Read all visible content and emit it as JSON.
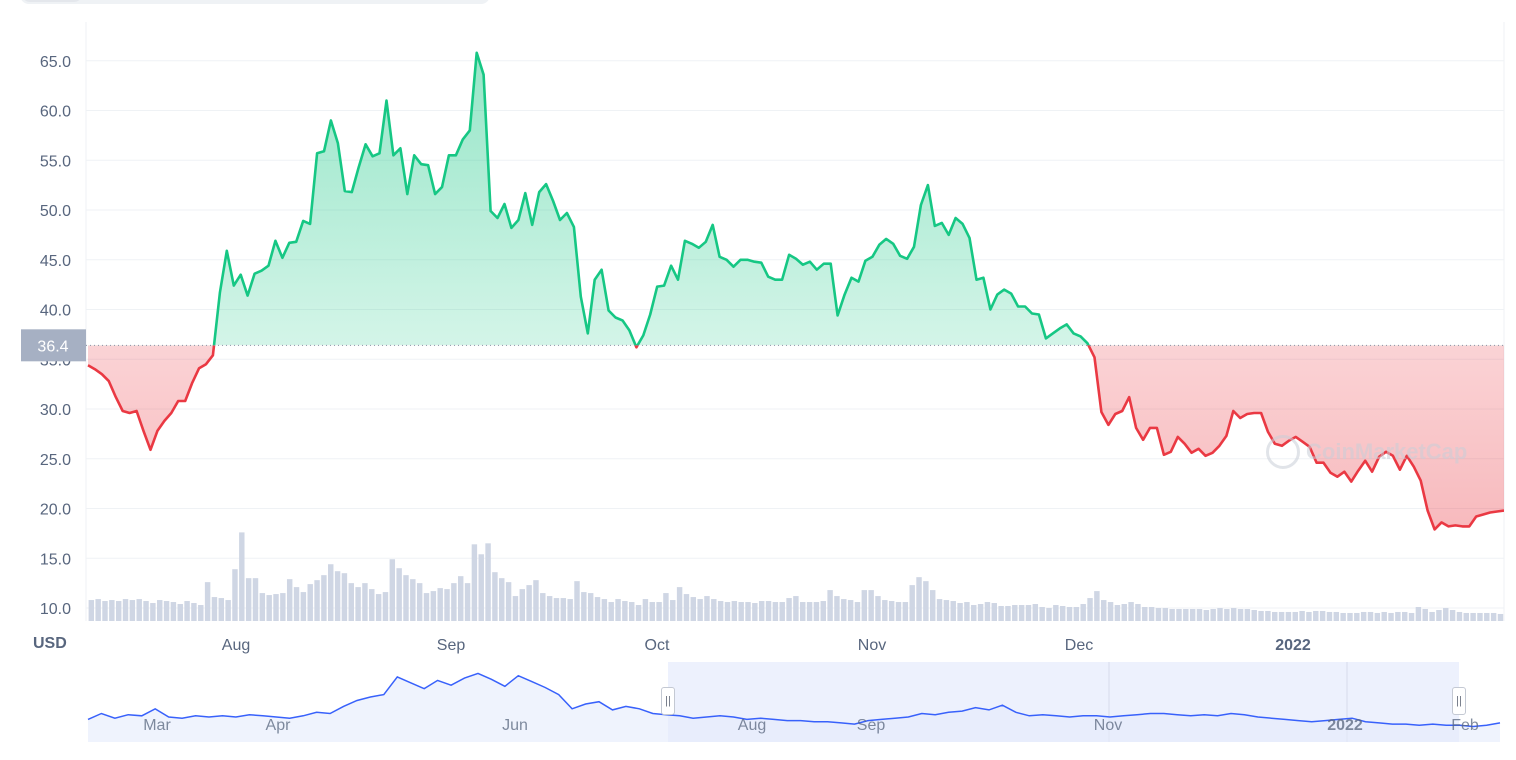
{
  "colors": {
    "up": "#16c784",
    "down": "#ea3943",
    "grid": "#eff2f5",
    "axis_text": "#58667e",
    "volume": "#cfd6e4",
    "navigator_line": "#3861fb",
    "navigator_fill": "#e5ebfc",
    "price_tag_bg": "#a6b0c3"
  },
  "icons": [
    "coinmarketcap-logo-icon",
    "range-handle-icon"
  ],
  "currency_label": "USD",
  "current_price_tag": "36.4",
  "watermark_text": "CoinMarketCap",
  "handle_glyph": "||",
  "chart_data": [
    {
      "type": "area",
      "title": "",
      "xlabel": "",
      "ylabel": "USD",
      "ylim": [
        8.8,
        68.5
      ],
      "y_ticks": [
        "10.0",
        "15.0",
        "20.0",
        "25.0",
        "30.0",
        "35.0",
        "40.0",
        "45.0",
        "50.0",
        "55.0",
        "60.0",
        "65.0"
      ],
      "x_ticks": [
        {
          "label": "Aug",
          "bold": false
        },
        {
          "label": "Sep",
          "bold": false
        },
        {
          "label": "Oct",
          "bold": false
        },
        {
          "label": "Nov",
          "bold": false
        },
        {
          "label": "Dec",
          "bold": false
        },
        {
          "label": "2022",
          "bold": true
        }
      ],
      "baseline": 36.4,
      "grid": true,
      "series": [
        {
          "values": [
            34.4,
            34.0,
            33.5,
            32.8,
            31.2,
            29.8,
            29.6,
            29.8,
            27.8,
            25.9,
            27.8,
            28.8,
            29.6,
            30.8,
            30.8,
            32.6,
            34.1,
            34.5,
            35.4,
            41.7,
            45.9,
            42.4,
            43.5,
            41.4,
            43.6,
            43.9,
            44.4,
            46.9,
            45.2,
            46.7,
            46.8,
            48.9,
            48.6,
            55.7,
            55.9,
            59.0,
            56.7,
            51.9,
            51.8,
            54.3,
            56.6,
            55.4,
            55.7,
            61.0,
            55.5,
            56.2,
            51.6,
            55.5,
            54.6,
            54.5,
            51.6,
            52.3,
            55.5,
            55.5,
            57.1,
            58.0,
            65.8,
            63.6,
            49.9,
            49.2,
            50.6,
            48.2,
            49.0,
            51.7,
            48.5,
            51.8,
            52.6,
            50.9,
            49.0,
            49.7,
            48.3,
            41.3,
            37.6,
            43.0,
            44.0,
            39.9,
            39.2,
            38.9,
            37.9,
            36.2,
            37.4,
            39.5,
            42.3,
            42.4,
            44.4,
            43.0,
            46.9,
            46.6,
            46.2,
            46.8,
            48.5,
            45.3,
            45.0,
            44.3,
            45.0,
            45.0,
            44.8,
            44.7,
            43.3,
            43.0,
            43.0,
            45.5,
            45.1,
            44.5,
            44.8,
            44.0,
            44.6,
            44.6,
            39.4,
            41.5,
            43.2,
            42.8,
            44.9,
            45.3,
            46.5,
            47.1,
            46.6,
            45.4,
            45.1,
            46.3,
            50.5,
            52.5,
            48.4,
            48.7,
            47.5,
            49.2,
            48.6,
            47.2,
            43.0,
            43.2,
            40.0,
            41.5,
            42.0,
            41.6,
            40.3,
            40.3,
            39.6,
            39.5,
            37.1,
            37.6,
            38.1,
            38.5,
            37.6,
            37.3,
            36.6,
            35.2,
            29.7,
            28.4,
            29.5,
            29.8,
            31.2,
            28.1,
            26.9,
            28.1,
            28.1,
            25.4,
            25.7,
            27.2,
            26.5,
            25.6,
            26.0,
            25.3,
            25.6,
            26.3,
            27.3,
            29.8,
            29.1,
            29.5,
            29.6,
            29.6,
            27.7,
            26.5,
            26.3,
            26.8,
            27.2,
            26.7,
            26.2,
            24.6,
            24.6,
            23.6,
            23.2,
            23.7,
            22.7,
            23.8,
            24.8,
            23.7,
            25.2,
            25.7,
            25.3,
            23.9,
            25.3,
            24.2,
            22.8,
            19.8,
            17.9,
            18.6,
            18.2,
            18.3,
            18.2,
            18.2,
            19.2,
            19.4,
            19.6,
            19.7,
            19.8
          ]
        }
      ],
      "volume": {
        "values": [
          10.8,
          10.9,
          10.7,
          10.8,
          10.7,
          10.9,
          10.8,
          10.9,
          10.7,
          10.5,
          10.8,
          10.7,
          10.6,
          10.4,
          10.7,
          10.5,
          10.3,
          12.6,
          11.1,
          11.0,
          10.8,
          13.9,
          17.6,
          13.0,
          13.0,
          11.5,
          11.3,
          11.4,
          11.5,
          12.9,
          12.1,
          11.6,
          12.4,
          12.8,
          13.3,
          14.4,
          13.7,
          13.5,
          12.5,
          12.1,
          12.5,
          11.9,
          11.4,
          11.6,
          14.9,
          14.0,
          13.3,
          12.9,
          12.5,
          11.5,
          11.7,
          12.0,
          11.9,
          12.5,
          13.2,
          12.5,
          16.4,
          15.4,
          16.5,
          13.6,
          13.0,
          12.6,
          11.2,
          11.9,
          12.3,
          12.8,
          11.5,
          11.2,
          11.0,
          11.0,
          10.9,
          12.7,
          11.6,
          11.5,
          11.1,
          10.9,
          10.6,
          10.9,
          10.7,
          10.6,
          10.3,
          10.9,
          10.6,
          10.6,
          11.5,
          10.8,
          12.1,
          11.4,
          11.1,
          10.9,
          11.2,
          10.9,
          10.7,
          10.6,
          10.7,
          10.6,
          10.6,
          10.5,
          10.7,
          10.7,
          10.6,
          10.6,
          11.0,
          11.2,
          10.6,
          10.6,
          10.6,
          10.7,
          11.8,
          11.2,
          10.9,
          10.8,
          10.6,
          11.8,
          11.8,
          11.2,
          10.8,
          10.7,
          10.6,
          10.6,
          12.3,
          13.1,
          12.7,
          11.8,
          10.9,
          10.8,
          10.7,
          10.5,
          10.6,
          10.3,
          10.4,
          10.6,
          10.5,
          10.2,
          10.2,
          10.3,
          10.3,
          10.3,
          10.4,
          10.1,
          10.0,
          10.3,
          10.2,
          10.1,
          10.1,
          10.4,
          11.0,
          11.7,
          10.8,
          10.6,
          10.3,
          10.4,
          10.6,
          10.4,
          10.1,
          10.1,
          10.0,
          10.0,
          9.9,
          9.9,
          9.9,
          9.9,
          9.9,
          9.8,
          9.9,
          10.0,
          9.9,
          10.0,
          9.9,
          9.9,
          9.8,
          9.7,
          9.7,
          9.6,
          9.6,
          9.6,
          9.6,
          9.7,
          9.6,
          9.7,
          9.7,
          9.6,
          9.6,
          9.5,
          9.5,
          9.5,
          9.6,
          9.6,
          9.5,
          9.6,
          9.5,
          9.6,
          9.6,
          9.5,
          10.1,
          9.9,
          9.6,
          9.8,
          10.0,
          9.8,
          9.6,
          9.5,
          9.5,
          9.5,
          9.5,
          9.5,
          9.4
        ]
      }
    },
    {
      "type": "line",
      "title": "",
      "x_ticks": [
        {
          "label": "Mar",
          "bold": false
        },
        {
          "label": "Apr",
          "bold": false
        },
        {
          "label": "Jun",
          "bold": false
        },
        {
          "label": "Aug",
          "bold": false
        },
        {
          "label": "Sep",
          "bold": false
        },
        {
          "label": "Nov",
          "bold": false
        },
        {
          "label": "2022",
          "bold": true
        },
        {
          "label": "Feb",
          "bold": false
        }
      ],
      "selected_range": [
        "Jul",
        "Feb"
      ],
      "series": [
        {
          "values": [
            9,
            14,
            10,
            13,
            12,
            18,
            11,
            10,
            12,
            11,
            12,
            11,
            13,
            12,
            11,
            10,
            12,
            15,
            14,
            20,
            25,
            28,
            30,
            45,
            40,
            35,
            42,
            38,
            44,
            48,
            43,
            37,
            46,
            41,
            36,
            30,
            18,
            22,
            24,
            17,
            20,
            18,
            14,
            13,
            12,
            10,
            11,
            12,
            11,
            9,
            10,
            9,
            8,
            8,
            7,
            7,
            6,
            5,
            8,
            9,
            10,
            11,
            14,
            13,
            15,
            16,
            19,
            17,
            21,
            15,
            12,
            13,
            12,
            11,
            12,
            12,
            11,
            12,
            13,
            14,
            14,
            13,
            12,
            13,
            12,
            14,
            13,
            11,
            10,
            9,
            8,
            7,
            8,
            9,
            10,
            7,
            6,
            5,
            5,
            4,
            5,
            4,
            4,
            3,
            4,
            6
          ]
        }
      ]
    }
  ]
}
